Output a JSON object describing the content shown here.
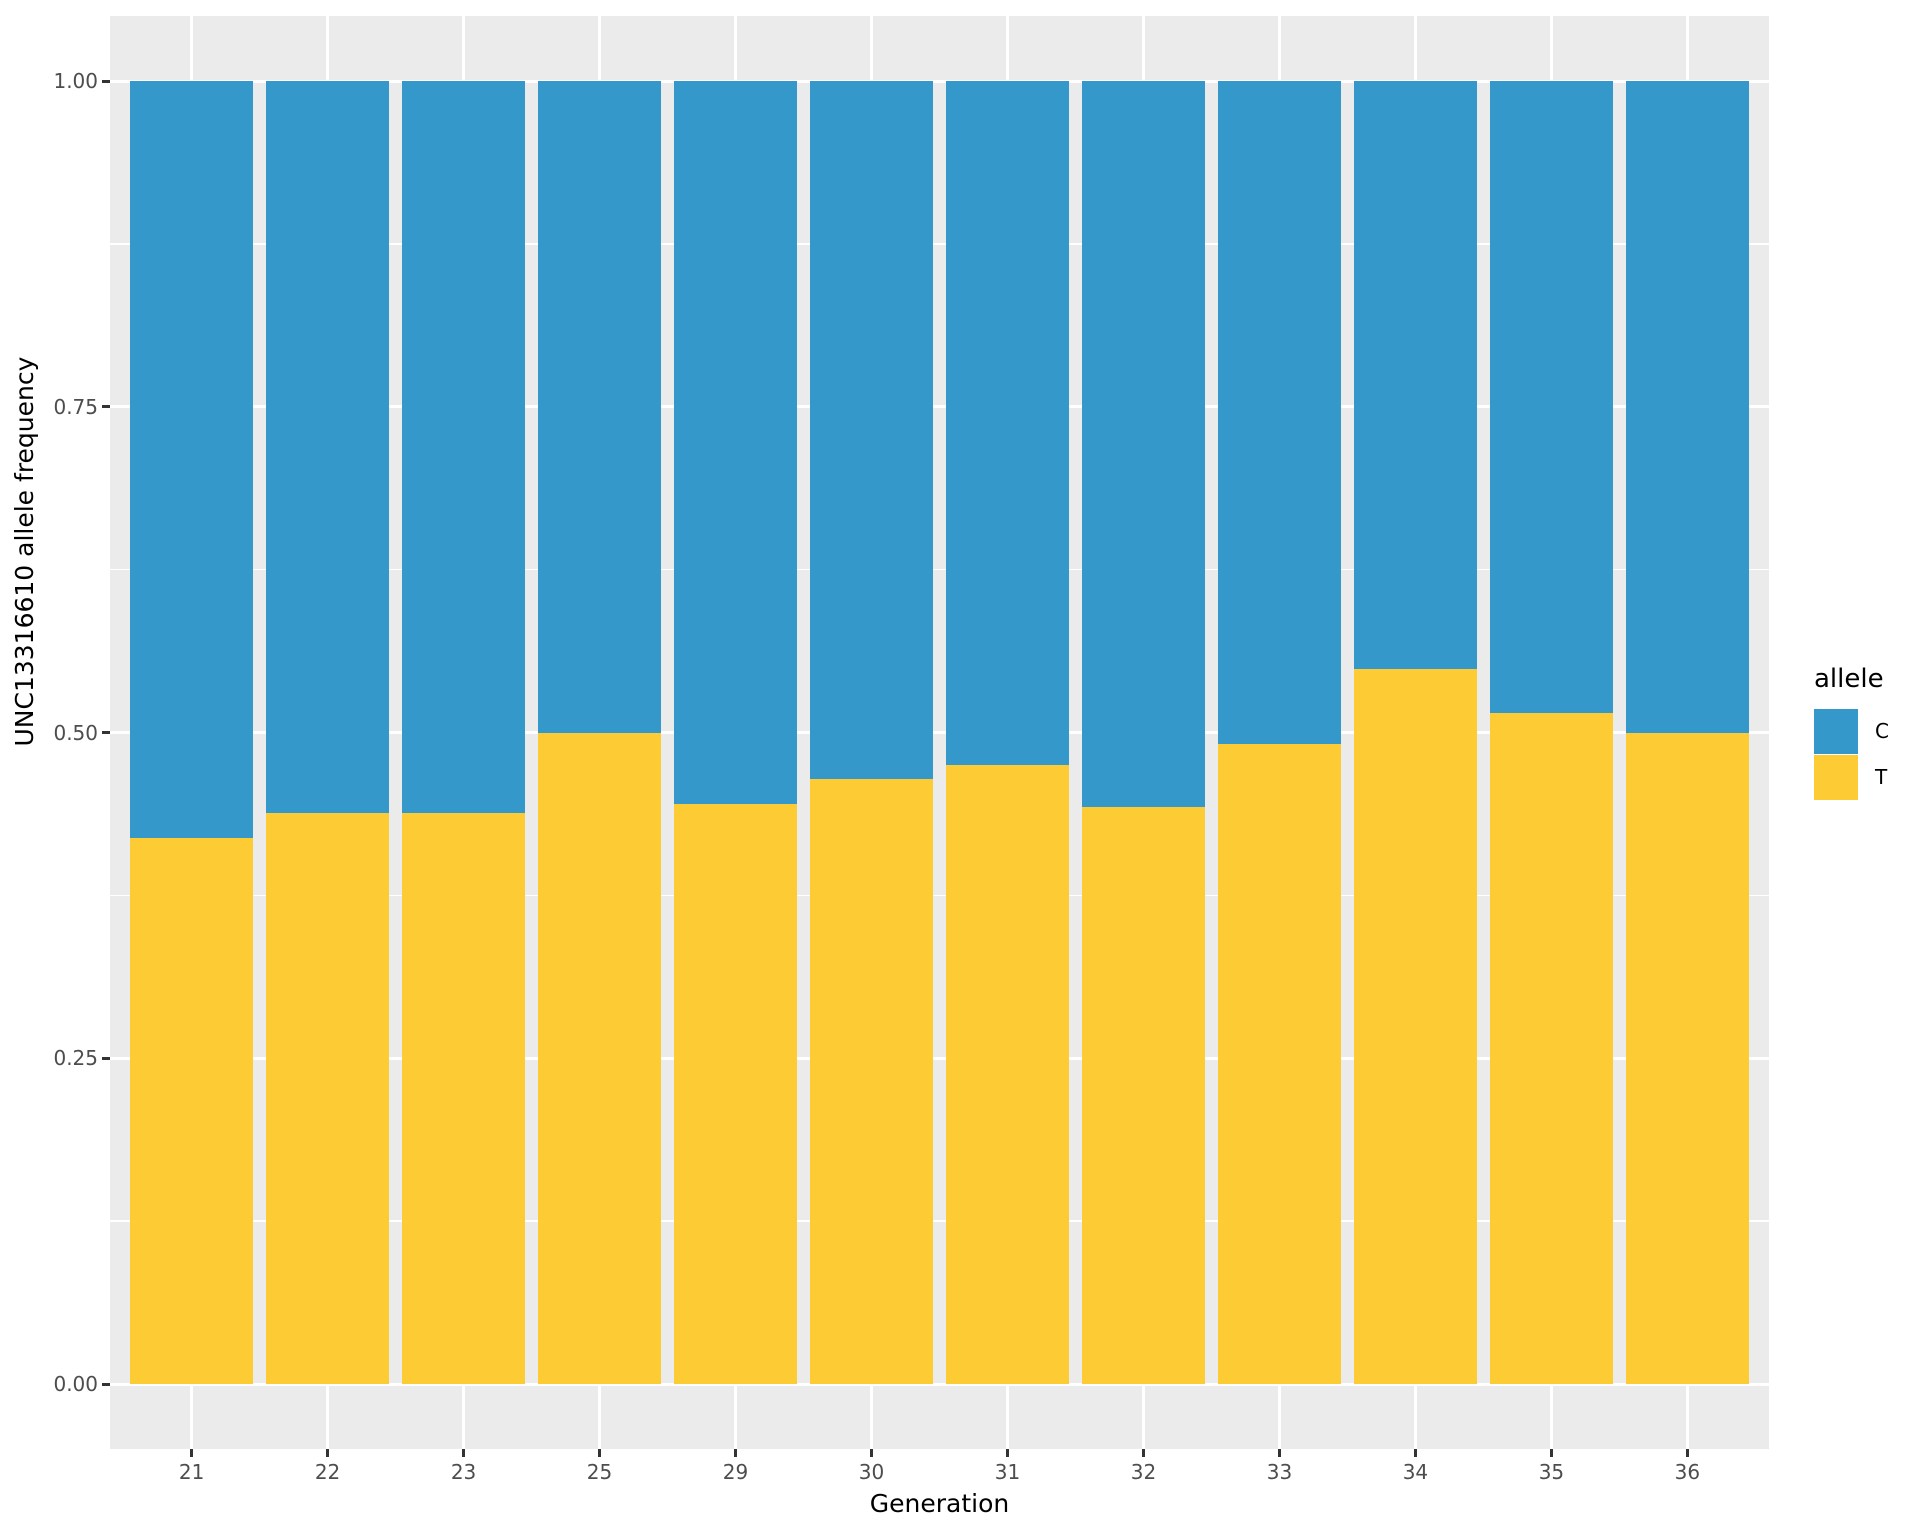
{
  "chart_data": {
    "type": "bar",
    "stacked": true,
    "orientation": "vertical",
    "title": "",
    "xlabel": "Generation",
    "ylabel": "UNC13316610 allele frequency",
    "categories": [
      "21",
      "22",
      "23",
      "25",
      "29",
      "30",
      "31",
      "32",
      "33",
      "34",
      "35",
      "36"
    ],
    "series": [
      {
        "name": "C",
        "color": "#3598CB",
        "values": [
          0.581,
          0.562,
          0.562,
          0.5,
          0.555,
          0.536,
          0.525,
          0.557,
          0.509,
          0.451,
          0.485,
          0.5
        ]
      },
      {
        "name": "T",
        "color": "#FDCB33",
        "values": [
          0.419,
          0.438,
          0.438,
          0.5,
          0.445,
          0.464,
          0.475,
          0.443,
          0.491,
          0.549,
          0.515,
          0.5
        ]
      }
    ],
    "ylim": [
      0,
      1
    ],
    "yticks": [
      {
        "label": "0.00",
        "value": 0.0
      },
      {
        "label": "0.25",
        "value": 0.25
      },
      {
        "label": "0.50",
        "value": 0.5
      },
      {
        "label": "0.75",
        "value": 0.75
      },
      {
        "label": "1.00",
        "value": 1.0
      }
    ],
    "legend": {
      "title": "allele",
      "position": "right"
    },
    "grid": {
      "panel_background": "#EBEBEB",
      "gridline_color": "#FFFFFF",
      "minor": true
    },
    "axis_text_color": "#4D4D4D",
    "tick_mark_color": "#333333"
  }
}
